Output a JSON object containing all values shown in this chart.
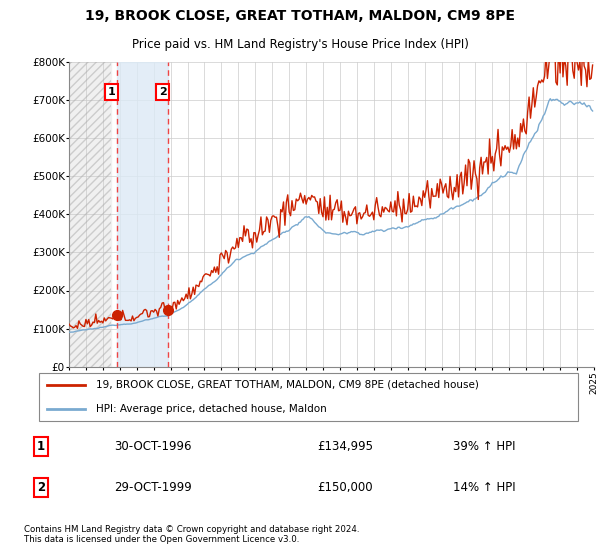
{
  "title": "19, BROOK CLOSE, GREAT TOTHAM, MALDON, CM9 8PE",
  "subtitle": "Price paid vs. HM Land Registry's House Price Index (HPI)",
  "ylim": [
    0,
    800000
  ],
  "yticks": [
    0,
    100000,
    200000,
    300000,
    400000,
    500000,
    600000,
    700000,
    800000
  ],
  "ytick_labels": [
    "£0",
    "£100K",
    "£200K",
    "£300K",
    "£400K",
    "£500K",
    "£600K",
    "£700K",
    "£800K"
  ],
  "legend_line1": "19, BROOK CLOSE, GREAT TOTHAM, MALDON, CM9 8PE (detached house)",
  "legend_line2": "HPI: Average price, detached house, Maldon",
  "sale1_label": "1",
  "sale1_date": "30-OCT-1996",
  "sale1_price": "£134,995",
  "sale1_hpi": "39% ↑ HPI",
  "sale2_label": "2",
  "sale2_date": "29-OCT-1999",
  "sale2_price": "£150,000",
  "sale2_hpi": "14% ↑ HPI",
  "footer": "Contains HM Land Registry data © Crown copyright and database right 2024.\nThis data is licensed under the Open Government Licence v3.0.",
  "hatch_color": "#aaaaaa",
  "hatch_bg": "#f0f0f0",
  "span_color": "#dce9f5",
  "red_line_color": "#cc2200",
  "blue_line_color": "#7aaad0",
  "sale_marker_color": "#cc2200",
  "vline_color": "#ee4444",
  "background_color": "#ffffff",
  "grid_color": "#cccccc",
  "sale1_x": 1996.83,
  "sale1_y": 134995,
  "sale2_x": 1999.83,
  "sale2_y": 150000,
  "xmin": 1994,
  "xmax": 2025
}
